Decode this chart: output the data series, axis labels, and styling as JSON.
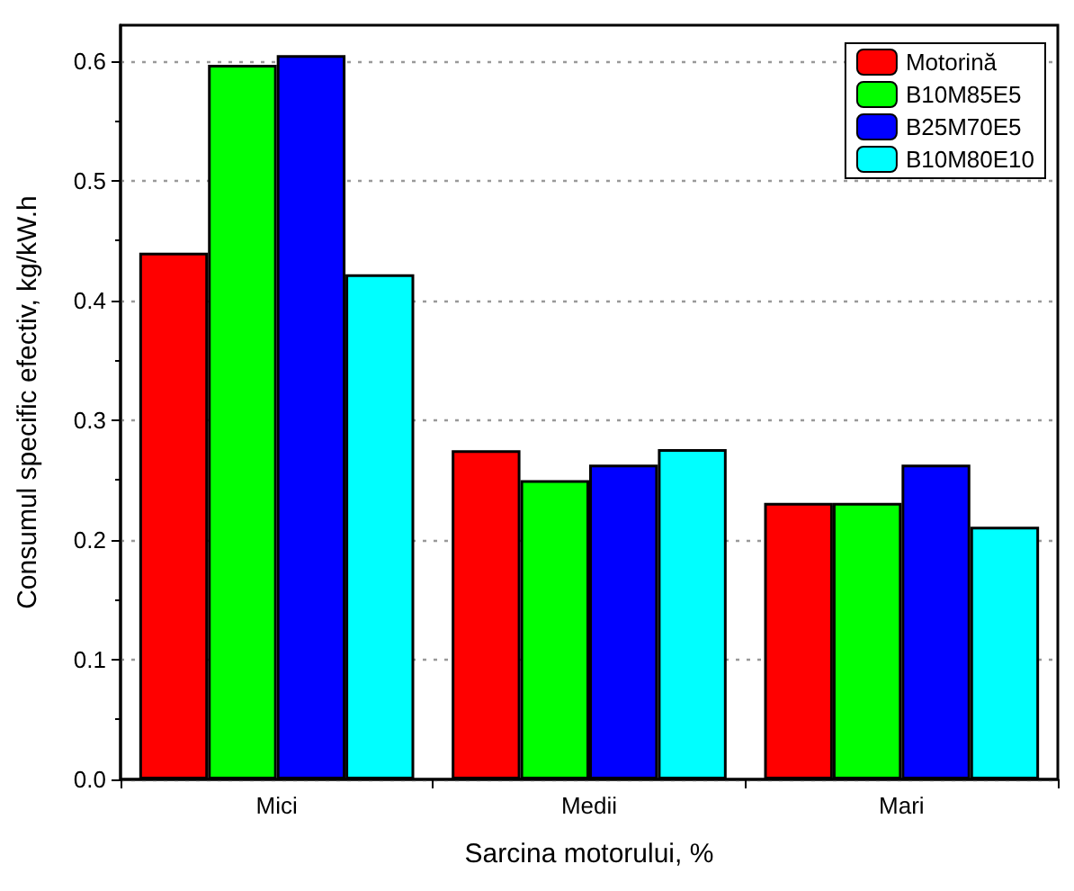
{
  "chart_data": {
    "type": "bar",
    "xlabel": "Sarcina motorului, %",
    "ylabel": "Consumul specific efectiv, kg/kW.h",
    "categories": [
      "Mici",
      "Medii",
      "Mari"
    ],
    "series": [
      {
        "name": "Motorină",
        "color": "#ff0000",
        "values": [
          0.44,
          0.275,
          0.231
        ]
      },
      {
        "name": "B10M85E5",
        "color": "#00ff00",
        "values": [
          0.597,
          0.25,
          0.231
        ]
      },
      {
        "name": "B25M70E5",
        "color": "#0000ff",
        "values": [
          0.605,
          0.263,
          0.263
        ]
      },
      {
        "name": "B10M80E10",
        "color": "#00ffff",
        "values": [
          0.422,
          0.276,
          0.211
        ]
      }
    ],
    "ylim": [
      0,
      0.63
    ],
    "yticks": [
      {
        "value": 0,
        "label": "0.0"
      },
      0.1,
      0.2,
      0.3,
      0.4,
      0.5,
      0.6
    ],
    "grid": "y",
    "legend": "top right"
  }
}
